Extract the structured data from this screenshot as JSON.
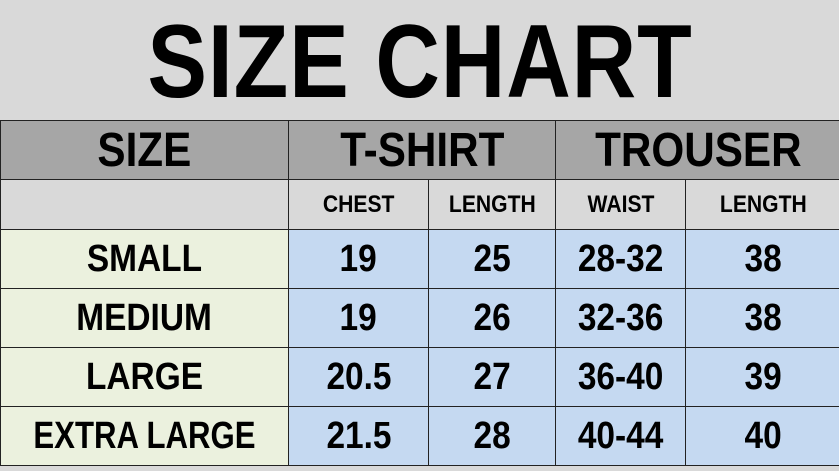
{
  "title": "SIZE CHART",
  "headers": {
    "size": "SIZE",
    "tshirt": "T-SHIRT",
    "trouser": "TROUSER"
  },
  "subheaders": [
    "CHEST",
    "LENGTH",
    "WAIST",
    "LENGTH"
  ],
  "rows": [
    {
      "size": "SMALL",
      "chest": "19",
      "tshirt_length": "25",
      "waist": "28-32",
      "trouser_length": "38"
    },
    {
      "size": "MEDIUM",
      "chest": "19",
      "tshirt_length": "26",
      "waist": "32-36",
      "trouser_length": "38"
    },
    {
      "size": "LARGE",
      "chest": "20.5",
      "tshirt_length": "27",
      "waist": "36-40",
      "trouser_length": "39"
    },
    {
      "size": "EXTRA LARGE",
      "chest": "21.5",
      "tshirt_length": "28",
      "waist": "40-44",
      "trouser_length": "40"
    }
  ],
  "colors": {
    "title_bg": "#d9d9d9",
    "header_bg": "#a6a6a6",
    "size_col_bg": "#ebf1de",
    "value_bg": "#c5d9f1"
  }
}
